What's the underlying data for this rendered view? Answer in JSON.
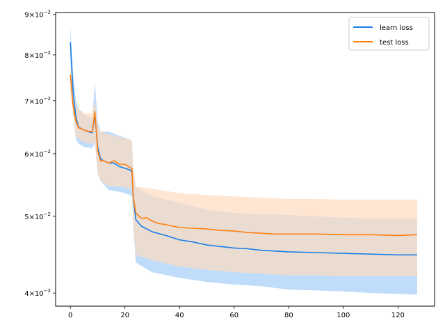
{
  "chart_data": {
    "type": "line",
    "title": "",
    "xlabel": "",
    "ylabel": "",
    "yscale": "log",
    "xlim": [
      -5.4,
      133.4
    ],
    "ylim": [
      0.0385,
      0.0905
    ],
    "grid": false,
    "legend_position": "top-right",
    "x_ticks": [
      0,
      20,
      40,
      60,
      80,
      100,
      120
    ],
    "x_tick_labels": [
      "0",
      "20",
      "40",
      "60",
      "80",
      "100",
      "120"
    ],
    "y_ticks": [
      0.04,
      0.05,
      0.06,
      0.07,
      0.08,
      0.09
    ],
    "y_tick_labels": [
      {
        "mantissa": "4",
        "base": "10",
        "exp": "−2"
      },
      {
        "mantissa": "5",
        "base": "10",
        "exp": "−2"
      },
      {
        "mantissa": "6",
        "base": "10",
        "exp": "−2"
      },
      {
        "mantissa": "7",
        "base": "10",
        "exp": "−2"
      },
      {
        "mantissa": "8",
        "base": "10",
        "exp": "−2"
      },
      {
        "mantissa": "9",
        "base": "10",
        "exp": "−2"
      }
    ],
    "series": [
      {
        "name": "learn loss",
        "color": "#1a80e6",
        "band_color": "#bfdcfb",
        "points": [
          [
            0,
            0.083
          ],
          [
            1,
            0.072
          ],
          [
            2,
            0.0668
          ],
          [
            3,
            0.0648
          ],
          [
            5,
            0.0643
          ],
          [
            7,
            0.0639
          ],
          [
            8,
            0.0638
          ],
          [
            9,
            0.0672
          ],
          [
            10,
            0.0612
          ],
          [
            11,
            0.0592
          ],
          [
            12,
            0.0588
          ],
          [
            14,
            0.0584
          ],
          [
            16,
            0.0584
          ],
          [
            18,
            0.0578
          ],
          [
            20,
            0.0575
          ],
          [
            22,
            0.0572
          ],
          [
            22.6,
            0.0568
          ],
          [
            23,
            0.053
          ],
          [
            24,
            0.0495
          ],
          [
            26,
            0.0486
          ],
          [
            30,
            0.0478
          ],
          [
            35,
            0.0473
          ],
          [
            40,
            0.0467
          ],
          [
            45,
            0.0464
          ],
          [
            50,
            0.046
          ],
          [
            55,
            0.0458
          ],
          [
            60,
            0.0456
          ],
          [
            65,
            0.0455
          ],
          [
            70,
            0.0453
          ],
          [
            75,
            0.0452
          ],
          [
            80,
            0.0451
          ],
          [
            90,
            0.045
          ],
          [
            100,
            0.0449
          ],
          [
            110,
            0.0448
          ],
          [
            120,
            0.0447
          ],
          [
            127,
            0.0447
          ]
        ],
        "band_upper": [
          [
            0,
            0.087
          ],
          [
            1,
            0.076
          ],
          [
            2,
            0.07
          ],
          [
            3,
            0.0685
          ],
          [
            5,
            0.0673
          ],
          [
            8,
            0.0665
          ],
          [
            9,
            0.0737
          ],
          [
            10,
            0.066
          ],
          [
            11,
            0.064
          ],
          [
            14,
            0.064
          ],
          [
            18,
            0.0632
          ],
          [
            22,
            0.0625
          ],
          [
            22.6,
            0.062
          ],
          [
            23,
            0.057
          ],
          [
            24,
            0.0545
          ],
          [
            30,
            0.053
          ],
          [
            40,
            0.052
          ],
          [
            50,
            0.051
          ],
          [
            60,
            0.0505
          ],
          [
            70,
            0.0503
          ],
          [
            80,
            0.0502
          ],
          [
            90,
            0.05
          ],
          [
            100,
            0.0498
          ],
          [
            110,
            0.0497
          ],
          [
            120,
            0.0497
          ],
          [
            127,
            0.0497
          ]
        ],
        "band_lower": [
          [
            0,
            0.079
          ],
          [
            1,
            0.068
          ],
          [
            2,
            0.0625
          ],
          [
            3,
            0.0618
          ],
          [
            5,
            0.0612
          ],
          [
            8,
            0.061
          ],
          [
            9,
            0.062
          ],
          [
            10,
            0.0568
          ],
          [
            11,
            0.0555
          ],
          [
            14,
            0.054
          ],
          [
            18,
            0.0537
          ],
          [
            22,
            0.0532
          ],
          [
            22.6,
            0.0528
          ],
          [
            23,
            0.049
          ],
          [
            24,
            0.0437
          ],
          [
            30,
            0.0425
          ],
          [
            40,
            0.0418
          ],
          [
            50,
            0.0413
          ],
          [
            60,
            0.041
          ],
          [
            70,
            0.0408
          ],
          [
            80,
            0.0404
          ],
          [
            90,
            0.0403
          ],
          [
            100,
            0.0402
          ],
          [
            110,
            0.04
          ],
          [
            120,
            0.0399
          ],
          [
            127,
            0.0398
          ]
        ]
      },
      {
        "name": "test loss",
        "color": "#ff7f0e",
        "band_color": "#fddcc0",
        "points": [
          [
            0,
            0.0755
          ],
          [
            1,
            0.069
          ],
          [
            2,
            0.066
          ],
          [
            3,
            0.0647
          ],
          [
            5,
            0.0643
          ],
          [
            7,
            0.064
          ],
          [
            8,
            0.064
          ],
          [
            9,
            0.0678
          ],
          [
            10,
            0.0605
          ],
          [
            11,
            0.0588
          ],
          [
            12,
            0.0588
          ],
          [
            14,
            0.0584
          ],
          [
            16,
            0.0588
          ],
          [
            18,
            0.0582
          ],
          [
            20,
            0.0582
          ],
          [
            22,
            0.0576
          ],
          [
            22.6,
            0.0574
          ],
          [
            23,
            0.053
          ],
          [
            24,
            0.0505
          ],
          [
            26,
            0.0497
          ],
          [
            28,
            0.0498
          ],
          [
            30,
            0.0493
          ],
          [
            32,
            0.049
          ],
          [
            35,
            0.0488
          ],
          [
            40,
            0.0484
          ],
          [
            45,
            0.0483
          ],
          [
            50,
            0.0482
          ],
          [
            55,
            0.048
          ],
          [
            60,
            0.0479
          ],
          [
            65,
            0.0477
          ],
          [
            70,
            0.0476
          ],
          [
            75,
            0.0475
          ],
          [
            80,
            0.0475
          ],
          [
            90,
            0.0475
          ],
          [
            100,
            0.0474
          ],
          [
            110,
            0.0474
          ],
          [
            120,
            0.0473
          ],
          [
            127,
            0.0474
          ]
        ],
        "band_upper": [
          [
            0,
            0.078
          ],
          [
            2,
            0.069
          ],
          [
            5,
            0.0675
          ],
          [
            8,
            0.0675
          ],
          [
            9,
            0.07
          ],
          [
            10,
            0.065
          ],
          [
            11,
            0.064
          ],
          [
            14,
            0.0635
          ],
          [
            18,
            0.063
          ],
          [
            22,
            0.0625
          ],
          [
            22.6,
            0.0623
          ],
          [
            23,
            0.058
          ],
          [
            24,
            0.0545
          ],
          [
            30,
            0.0542
          ],
          [
            40,
            0.0535
          ],
          [
            50,
            0.0532
          ],
          [
            60,
            0.053
          ],
          [
            70,
            0.0528
          ],
          [
            80,
            0.0526
          ],
          [
            90,
            0.0526
          ],
          [
            100,
            0.0525
          ],
          [
            110,
            0.0525
          ],
          [
            120,
            0.0525
          ],
          [
            127,
            0.0525
          ]
        ],
        "band_lower": [
          [
            0,
            0.072
          ],
          [
            2,
            0.063
          ],
          [
            5,
            0.062
          ],
          [
            8,
            0.0618
          ],
          [
            9,
            0.062
          ],
          [
            10,
            0.0565
          ],
          [
            11,
            0.0555
          ],
          [
            14,
            0.0546
          ],
          [
            18,
            0.0545
          ],
          [
            22,
            0.0542
          ],
          [
            22.6,
            0.054
          ],
          [
            23,
            0.049
          ],
          [
            24,
            0.0447
          ],
          [
            30,
            0.044
          ],
          [
            40,
            0.0432
          ],
          [
            50,
            0.0428
          ],
          [
            60,
            0.0425
          ],
          [
            70,
            0.0423
          ],
          [
            80,
            0.0421
          ],
          [
            90,
            0.0421
          ],
          [
            100,
            0.042
          ],
          [
            110,
            0.042
          ],
          [
            120,
            0.042
          ],
          [
            127,
            0.042
          ]
        ]
      }
    ]
  }
}
